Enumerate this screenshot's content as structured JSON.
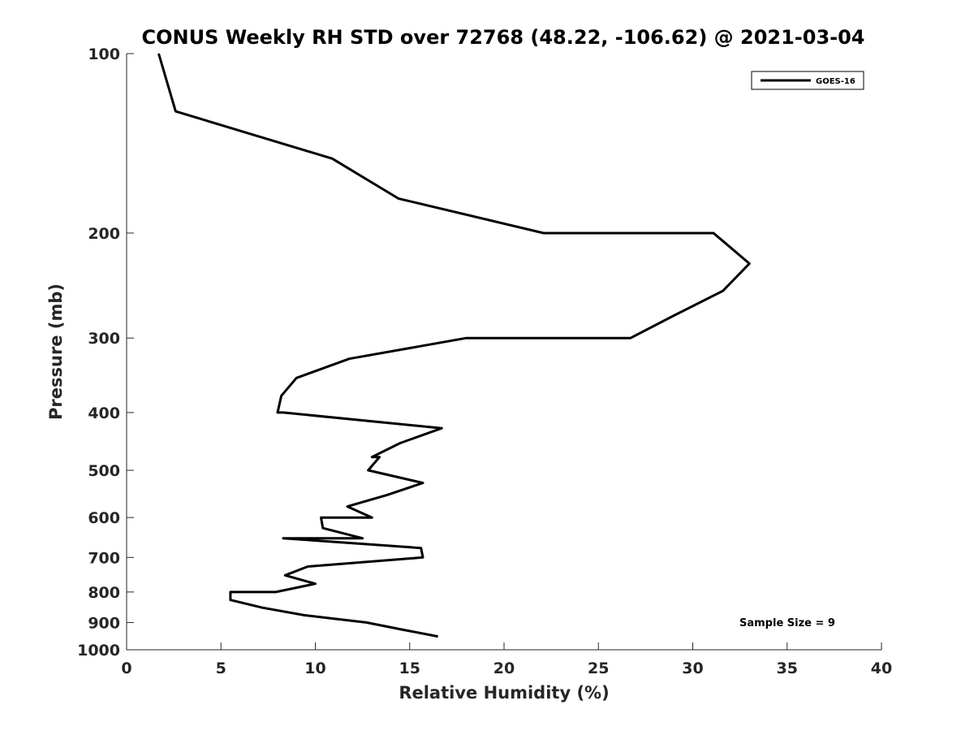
{
  "chart_data": {
    "type": "line",
    "title": "CONUS Weekly RH STD over 72768 (48.22, -106.62) @ 2021-03-04",
    "xlabel": "Relative Humidity (%)",
    "ylabel": "Pressure (mb)",
    "xlim": [
      0,
      40
    ],
    "ylim": [
      100,
      1000
    ],
    "y_scale": "log",
    "y_reversed": true,
    "x_ticks": [
      0,
      5,
      10,
      15,
      20,
      25,
      30,
      35,
      40
    ],
    "y_ticks": [
      100,
      200,
      300,
      400,
      500,
      600,
      700,
      800,
      900,
      1000
    ],
    "legend_position": "top-right",
    "grid": false,
    "series": [
      {
        "name": "GOES-16",
        "color": "#000000",
        "points": [
          [
            1.7,
            100
          ],
          [
            2.6,
            125
          ],
          [
            10.9,
            150
          ],
          [
            14.4,
            175
          ],
          [
            22.1,
            200
          ],
          [
            31.1,
            200
          ],
          [
            33.0,
            225
          ],
          [
            31.6,
            250
          ],
          [
            29.0,
            275
          ],
          [
            26.7,
            300
          ],
          [
            18.0,
            300
          ],
          [
            11.8,
            325
          ],
          [
            9.0,
            350
          ],
          [
            8.2,
            375
          ],
          [
            8.0,
            400
          ],
          [
            8.3,
            400
          ],
          [
            16.7,
            425
          ],
          [
            14.5,
            450
          ],
          [
            13.0,
            475
          ],
          [
            13.4,
            475
          ],
          [
            12.8,
            500
          ],
          [
            15.7,
            525
          ],
          [
            13.8,
            550
          ],
          [
            11.7,
            575
          ],
          [
            13.0,
            600
          ],
          [
            10.3,
            600
          ],
          [
            10.4,
            625
          ],
          [
            12.5,
            650
          ],
          [
            8.3,
            650
          ],
          [
            15.6,
            675
          ],
          [
            15.7,
            700
          ],
          [
            9.6,
            725
          ],
          [
            8.4,
            750
          ],
          [
            10.0,
            775
          ],
          [
            7.9,
            800
          ],
          [
            5.5,
            800
          ],
          [
            5.5,
            825
          ],
          [
            7.2,
            850
          ],
          [
            9.4,
            875
          ],
          [
            12.7,
            900
          ],
          [
            14.6,
            925
          ],
          [
            16.5,
            950
          ]
        ]
      }
    ],
    "annotations": [
      "Sample Size = 9"
    ]
  }
}
